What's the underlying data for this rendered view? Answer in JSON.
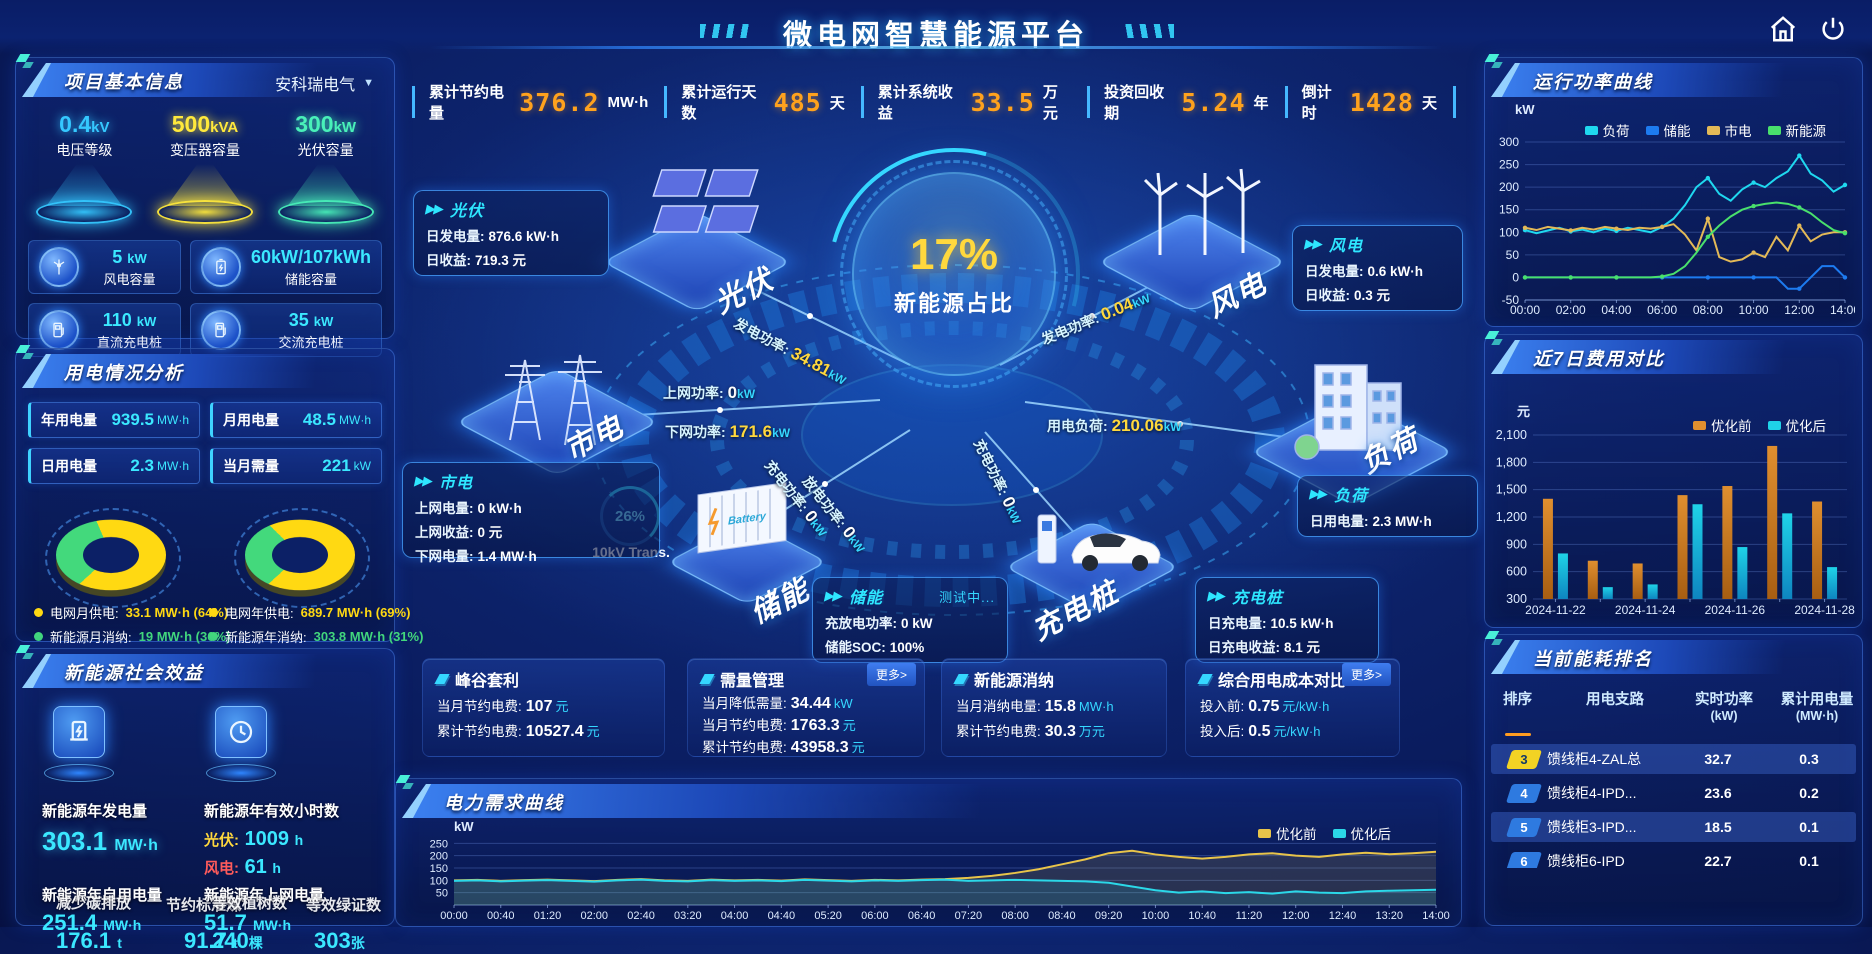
{
  "header": {
    "title": "微电网智慧能源平台"
  },
  "kpis": [
    {
      "label": "累计节约电量",
      "value": "376.2",
      "unit": "MW·h"
    },
    {
      "label": "累计运行天数",
      "value": "485",
      "unit": "天"
    },
    {
      "label": "累计系统收益",
      "value": "33.5",
      "unit": "万元"
    },
    {
      "label": "投资回收期",
      "value": "5.24",
      "unit": "年"
    },
    {
      "label": "倒计时",
      "value": "1428",
      "unit": "天"
    }
  ],
  "project_info": {
    "title": "项目基本信息",
    "company": "安科瑞电气",
    "cones": [
      {
        "value": "0.4",
        "unit": "kV",
        "label": "电压等级",
        "color": "#35c8ff"
      },
      {
        "value": "500",
        "unit": "kVA",
        "label": "变压器容量",
        "color": "#ffe93c"
      },
      {
        "value": "300",
        "unit": "kW",
        "label": "光伏容量",
        "color": "#49f0b9"
      }
    ],
    "cards": [
      {
        "icon": "wind-turbine-icon",
        "value": "5",
        "unit": "kW",
        "label": "风电容量"
      },
      {
        "icon": "battery-icon",
        "value": "60kW/107kWh",
        "unit": "",
        "label": "储能容量"
      },
      {
        "icon": "dc-charger-icon",
        "value": "110",
        "unit": "kW",
        "label": "直流充电桩"
      },
      {
        "icon": "ac-charger-icon",
        "value": "35",
        "unit": "kW",
        "label": "交流充电桩"
      }
    ]
  },
  "usage_analysis": {
    "title": "用电情况分析",
    "stats": [
      {
        "label": "年用电量",
        "value": "939.5",
        "unit": "MW·h"
      },
      {
        "label": "月用电量",
        "value": "48.5",
        "unit": "MW·h"
      },
      {
        "label": "日用电量",
        "value": "2.3",
        "unit": "MW·h"
      },
      {
        "label": "当月需量",
        "value": "221",
        "unit": "kW"
      }
    ],
    "donuts": [
      {
        "grid_pct": 64,
        "legend": [
          {
            "label": "电网月供电:",
            "value": "33.1 MW·h (64%)",
            "color": "#ffd912"
          },
          {
            "label": "新能源月消纳:",
            "value": "19 MW·h (36%)",
            "color": "#43d97c"
          }
        ]
      },
      {
        "grid_pct": 69,
        "legend": [
          {
            "label": "电网年供电:",
            "value": "689.7 MW·h (69%)",
            "color": "#ffd912"
          },
          {
            "label": "新能源年消纳:",
            "value": "303.8 MW·h (31%)",
            "color": "#43d97c"
          }
        ]
      }
    ]
  },
  "social_benefits": {
    "title": "新能源社会效益",
    "gen_label": "新能源年发电量",
    "gen_value": "303.1",
    "gen_unit": "MW·h",
    "hours_label": "新能源年有效小时数",
    "pv_k": "光伏:",
    "pv_v": "1009",
    "pv_u": "h",
    "wind_k": "风电:",
    "wind_v": "61",
    "wind_u": "h",
    "self_label": "新能源年自用电量",
    "self_value": "251.4",
    "self_unit": "MW·h",
    "export_label": "新能源年上网电量",
    "export_value": "51.7",
    "export_unit": "MW·h",
    "co2_label": "减少碳排放",
    "co2_value": "176.1",
    "co2_unit": "t",
    "coal_label": "节约标准煤",
    "coal_value": "91.7",
    "coal_unit": "t",
    "trees_label": "等效植树数",
    "trees_value": "240",
    "trees_unit": "棵",
    "cert_label": "等效绿证数",
    "cert_value": "303",
    "cert_unit": "张"
  },
  "scene": {
    "center_pct": "17%",
    "center_label": "新能源占比",
    "transformer_pct": "26%",
    "transformer_label": "10kV Trans.",
    "nodes": [
      {
        "name": "光伏"
      },
      {
        "name": "风电"
      },
      {
        "name": "市电"
      },
      {
        "name": "负荷"
      },
      {
        "name": "储能"
      },
      {
        "name": "充电桩"
      }
    ],
    "flows": [
      {
        "label": "发电功率:",
        "value": "34.81",
        "unit": "kW"
      },
      {
        "label": "发电功率:",
        "value": "0.04",
        "unit": "kW"
      },
      {
        "label": "上网功率:",
        "value": "0",
        "unit": "kW"
      },
      {
        "label": "下网功率:",
        "value": "171.6",
        "unit": "kW"
      },
      {
        "label": "用电负荷:",
        "value": "210.06",
        "unit": "kW"
      },
      {
        "label": "充电功率:",
        "value": "0",
        "unit": "kW"
      },
      {
        "label": "放电功率:",
        "value": "0",
        "unit": "kW"
      },
      {
        "label": "充电功率:",
        "value": "0",
        "unit": "kW"
      }
    ],
    "boxes": [
      {
        "title": "光伏",
        "rows": [
          {
            "k": "日发电量:",
            "v": "876.6 kW·h"
          },
          {
            "k": "日收益:",
            "v": "719.3 元"
          }
        ]
      },
      {
        "title": "风电",
        "rows": [
          {
            "k": "日发电量:",
            "v": "0.6 kW·h"
          },
          {
            "k": "日收益:",
            "v": "0.3 元"
          }
        ]
      },
      {
        "title": "市电",
        "rows": [
          {
            "k": "上网电量:",
            "v": "0 kW·h"
          },
          {
            "k": "上网收益:",
            "v": "0 元"
          },
          {
            "k": "下网电量:",
            "v": "1.4 MW·h"
          }
        ]
      },
      {
        "title": "负荷",
        "rows": [
          {
            "k": "日用电量:",
            "v": "2.3 MW·h"
          }
        ]
      },
      {
        "title": "储能",
        "badge": "测试中...",
        "rows": [
          {
            "k": "充放电功率:",
            "v": "0 kW"
          },
          {
            "k": "储能SOC:",
            "v": "100%"
          }
        ]
      },
      {
        "title": "充电桩",
        "rows": [
          {
            "k": "日充电量:",
            "v": "10.5 kW·h"
          },
          {
            "k": "日充电收益:",
            "v": "8.1 元"
          }
        ]
      }
    ]
  },
  "benefit_cards": [
    {
      "title": "峰谷套利",
      "more": null,
      "rows": [
        {
          "k": "当月节约电费:",
          "v": "107",
          "u": "元"
        },
        {
          "k": "累计节约电费:",
          "v": "10527.4",
          "u": "元"
        }
      ]
    },
    {
      "title": "需量管理",
      "more": "更多>",
      "rows": [
        {
          "k": "当月降低需量:",
          "v": "34.44",
          "u": "kW"
        },
        {
          "k": "当月节约电费:",
          "v": "1763.3",
          "u": "元"
        },
        {
          "k": "累计节约电费:",
          "v": "43958.3",
          "u": "元"
        }
      ]
    },
    {
      "title": "新能源消纳",
      "more": null,
      "rows": [
        {
          "k": "当月消纳电量:",
          "v": "15.8",
          "u": "MW·h"
        },
        {
          "k": "累计节约电费:",
          "v": "30.3",
          "u": "万元"
        }
      ]
    },
    {
      "title": "综合用电成本对比",
      "more": "更多>",
      "rows": [
        {
          "k": "投入前:",
          "v": "0.75",
          "u": "元/kW·h"
        },
        {
          "k": "投入后:",
          "v": "0.5",
          "u": "元/kW·h"
        }
      ]
    }
  ],
  "ranking": {
    "title": "当前能耗排名",
    "headers": [
      {
        "a": "排序",
        "b": ""
      },
      {
        "a": "用电支路",
        "b": ""
      },
      {
        "a": "实时功率",
        "b": "(kW)"
      },
      {
        "a": "累计用电量",
        "b": "(MW·h)"
      }
    ],
    "rows": [
      {
        "rank": "3",
        "name": "馈线柜4-ZAL总",
        "power": "32.7",
        "energy": "0.3",
        "badge": "gold"
      },
      {
        "rank": "4",
        "name": "馈线柜4-IPD...",
        "power": "23.6",
        "energy": "0.2",
        "badge": "blue"
      },
      {
        "rank": "5",
        "name": "馈线柜3-IPD...",
        "power": "18.5",
        "energy": "0.1",
        "badge": "blue"
      },
      {
        "rank": "6",
        "name": "馈线柜6-IPD",
        "power": "22.7",
        "energy": "0.1",
        "badge": "blue"
      }
    ]
  },
  "chart_data": [
    {
      "id": "power-curve",
      "type": "line",
      "title": "运行功率曲线",
      "ylabel": "kW",
      "ylim": [
        -50,
        300
      ],
      "ytick_step": 50,
      "grid": true,
      "legend_position": "top",
      "xticks": [
        "00:00",
        "02:00",
        "04:00",
        "06:00",
        "08:00",
        "10:00",
        "12:00",
        "14:00"
      ],
      "x_hours_step": 0.5,
      "series": [
        {
          "name": "负荷",
          "color": "#1fd8ef",
          "values": [
            105,
            98,
            104,
            110,
            102,
            106,
            100,
            108,
            103,
            110,
            105,
            100,
            112,
            130,
            160,
            200,
            220,
            185,
            170,
            195,
            210,
            200,
            220,
            235,
            270,
            230,
            215,
            190,
            205
          ]
        },
        {
          "name": "储能",
          "color": "#1d7bf0",
          "values": [
            0,
            0,
            0,
            0,
            0,
            0,
            0,
            0,
            0,
            0,
            0,
            0,
            0,
            0,
            0,
            0,
            0,
            0,
            0,
            0,
            0,
            0,
            0,
            -25,
            -25,
            0,
            25,
            25,
            0
          ]
        },
        {
          "name": "市电",
          "color": "#e3b957",
          "values": [
            110,
            105,
            112,
            108,
            104,
            110,
            106,
            112,
            108,
            105,
            110,
            108,
            112,
            118,
            95,
            60,
            130,
            45,
            35,
            40,
            55,
            45,
            90,
            60,
            115,
            80,
            95,
            100,
            100
          ]
        },
        {
          "name": "新能源",
          "color": "#49e06c",
          "values": [
            0,
            0,
            0,
            0,
            0,
            0,
            0,
            0,
            0,
            0,
            0,
            0,
            2,
            8,
            25,
            55,
            90,
            115,
            135,
            150,
            158,
            163,
            166,
            163,
            155,
            142,
            122,
            105,
            98
          ]
        }
      ]
    },
    {
      "id": "cost-compare",
      "type": "bar",
      "title": "近7日费用对比",
      "ylabel": "元",
      "ylim": [
        300,
        2100
      ],
      "ytick_step": 300,
      "grid": true,
      "legend_position": "top",
      "categories": [
        "2024-11-22",
        "2024-11-23",
        "2024-11-24",
        "2024-11-25",
        "2024-11-26",
        "2024-11-27",
        "2024-11-28"
      ],
      "xticks_shown": [
        "2024-11-22",
        "2024-11-24",
        "2024-11-26",
        "2024-11-28"
      ],
      "series": [
        {
          "name": "优化前",
          "color": "#e08f2f",
          "color2": "#a85e12",
          "values": [
            1400,
            720,
            690,
            1440,
            1540,
            1980,
            1370
          ]
        },
        {
          "name": "优化后",
          "color": "#1fd3e8",
          "color2": "#0e85c0",
          "values": [
            800,
            430,
            460,
            1340,
            870,
            1240,
            650
          ]
        }
      ]
    },
    {
      "id": "demand-curve",
      "type": "line",
      "title": "电力需求曲线",
      "ylabel": "kW",
      "ylim": [
        0,
        300
      ],
      "ytick_step": 50,
      "ytick_min": 50,
      "ytick_max": 250,
      "grid": true,
      "legend_position": "top-right",
      "xticks": [
        "00:00",
        "00:40",
        "01:20",
        "02:00",
        "02:40",
        "03:20",
        "04:00",
        "04:40",
        "05:20",
        "06:00",
        "06:40",
        "07:20",
        "08:00",
        "08:40",
        "09:20",
        "10:00",
        "10:40",
        "11:20",
        "12:00",
        "12:40",
        "13:20",
        "14:00"
      ],
      "x_minutes_step": 20,
      "series": [
        {
          "name": "优化前",
          "color": "#e8c44a",
          "values": [
            100,
            102,
            98,
            101,
            103,
            100,
            97,
            102,
            105,
            100,
            98,
            103,
            100,
            102,
            99,
            104,
            101,
            98,
            102,
            100,
            103,
            105,
            110,
            118,
            130,
            145,
            165,
            185,
            210,
            220,
            205,
            195,
            188,
            195,
            205,
            210,
            200,
            195,
            205,
            212,
            206,
            210,
            216
          ]
        },
        {
          "name": "优化后",
          "color": "#2bd8e8",
          "values": [
            98,
            100,
            96,
            99,
            101,
            98,
            95,
            100,
            103,
            98,
            96,
            101,
            98,
            100,
            97,
            102,
            99,
            96,
            100,
            98,
            101,
            103,
            98,
            100,
            102,
            100,
            98,
            96,
            90,
            75,
            60,
            50,
            55,
            48,
            52,
            46,
            55,
            50,
            48,
            55,
            58,
            60,
            62
          ]
        }
      ]
    }
  ]
}
